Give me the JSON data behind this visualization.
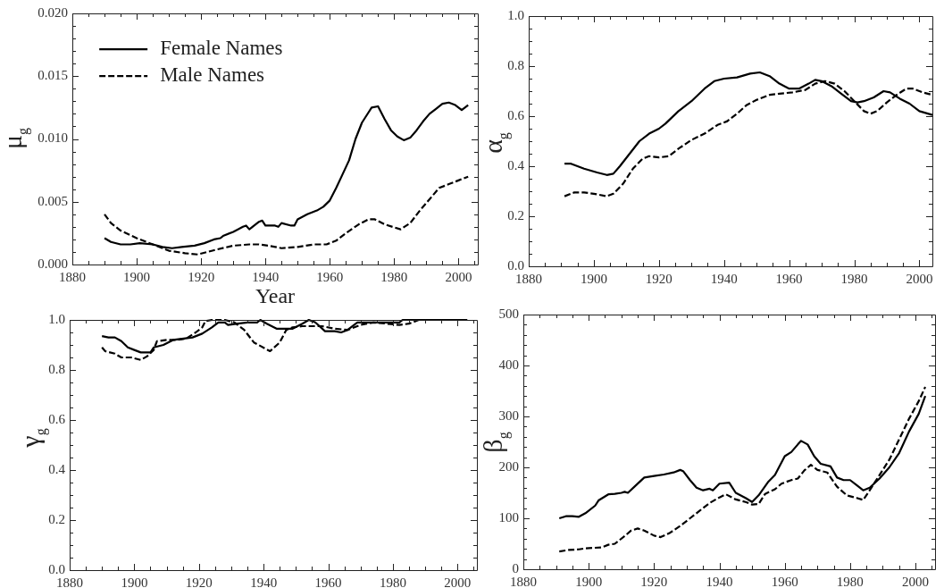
{
  "chart_data": [
    {
      "type": "line",
      "xlabel": "Year",
      "ylabel": "μ$_{g}$",
      "legend": "top left",
      "xlim": [
        1880,
        2006
      ],
      "ylim": [
        0,
        0.02
      ],
      "xticks": [
        1880,
        {
          "value": 1885,
          "label": null
        },
        {
          "value": 1890,
          "label": null
        },
        {
          "value": 1895,
          "label": null
        },
        1900,
        {
          "value": 1905,
          "label": null
        },
        {
          "value": 1910,
          "label": null
        },
        {
          "value": 1915,
          "label": null
        },
        1920,
        {
          "value": 1925,
          "label": null
        },
        {
          "value": 1930,
          "label": null
        },
        {
          "value": 1935,
          "label": null
        },
        1940,
        {
          "value": 1945,
          "label": null
        },
        {
          "value": 1950,
          "label": null
        },
        {
          "value": 1955,
          "label": null
        },
        1960,
        {
          "value": 1965,
          "label": null
        },
        {
          "value": 1970,
          "label": null
        },
        {
          "value": 1975,
          "label": null
        },
        1980,
        {
          "value": 1985,
          "label": null
        },
        {
          "value": 1990,
          "label": null
        },
        {
          "value": 1995,
          "label": null
        },
        2000,
        {
          "value": 2005,
          "label": null
        }
      ],
      "yticks": [
        {
          "value": 0,
          "label": "0.000"
        },
        {
          "value": 0.001,
          "label": null
        },
        {
          "value": 0.002,
          "label": null
        },
        {
          "value": 0.003,
          "label": null
        },
        {
          "value": 0.004,
          "label": null
        },
        {
          "value": 0.005,
          "label": "0.005"
        },
        {
          "value": 0.006,
          "label": null
        },
        {
          "value": 0.007,
          "label": null
        },
        {
          "value": 0.008,
          "label": null
        },
        {
          "value": 0.009,
          "label": null
        },
        {
          "value": 0.01,
          "label": "0.010"
        },
        {
          "value": 0.011,
          "label": null
        },
        {
          "value": 0.012,
          "label": null
        },
        {
          "value": 0.013,
          "label": null
        },
        {
          "value": 0.014,
          "label": null
        },
        {
          "value": 0.015,
          "label": "0.015"
        },
        {
          "value": 0.016,
          "label": null
        },
        {
          "value": 0.017,
          "label": null
        },
        {
          "value": 0.018,
          "label": null
        },
        {
          "value": 0.019,
          "label": null
        },
        {
          "value": 0.02,
          "label": "0.020"
        }
      ],
      "series": [
        {
          "name": "Female Names",
          "color": "#000000",
          "line_style": "solid",
          "x": [
            1890,
            1892,
            1895,
            1898,
            1901,
            1905,
            1908,
            1911,
            1914,
            1918,
            1921,
            1924,
            1926,
            1927,
            1930,
            1933,
            1934,
            1935,
            1938,
            1939,
            1940,
            1943,
            1944,
            1945,
            1948,
            1949,
            1950,
            1953,
            1956,
            1958,
            1960,
            1962,
            1964,
            1966,
            1968,
            1970,
            1972,
            1973,
            1975,
            1977,
            1979,
            1981,
            1983,
            1985,
            1987,
            1989,
            1991,
            1993,
            1995,
            1997,
            1999,
            2001,
            2003
          ],
          "values": [
            0.0021,
            0.0018,
            0.0016,
            0.0016,
            0.0017,
            0.0016,
            0.0014,
            0.0013,
            0.0014,
            0.0015,
            0.0017,
            0.002,
            0.0021,
            0.0023,
            0.0026,
            0.003,
            0.0031,
            0.0028,
            0.0034,
            0.0035,
            0.0031,
            0.0031,
            0.003,
            0.0033,
            0.0031,
            0.0031,
            0.0036,
            0.004,
            0.0043,
            0.0046,
            0.0051,
            0.0061,
            0.0072,
            0.0083,
            0.01,
            0.0113,
            0.0121,
            0.0125,
            0.0126,
            0.0116,
            0.0107,
            0.0102,
            0.0099,
            0.0101,
            0.0107,
            0.0114,
            0.012,
            0.0124,
            0.0128,
            0.0129,
            0.0127,
            0.0123,
            0.0127
          ]
        },
        {
          "name": "Male Names",
          "color": "#000000",
          "line_style": "dashed",
          "x": [
            1890,
            1892,
            1895,
            1900,
            1905,
            1910,
            1915,
            1919,
            1922,
            1925,
            1930,
            1935,
            1938,
            1941,
            1945,
            1950,
            1955,
            1959,
            1962,
            1965,
            1969,
            1972,
            1974,
            1977,
            1982,
            1985,
            1988,
            1991,
            1994,
            1997,
            2000,
            2003
          ],
          "values": [
            0.004,
            0.0033,
            0.0027,
            0.0021,
            0.0016,
            0.0011,
            0.0009,
            0.0008,
            0.001,
            0.0012,
            0.0015,
            0.0016,
            0.0016,
            0.0015,
            0.0013,
            0.0014,
            0.0016,
            0.0016,
            0.0019,
            0.0025,
            0.0032,
            0.0036,
            0.0036,
            0.0032,
            0.0028,
            0.0033,
            0.0043,
            0.0052,
            0.0061,
            0.0064,
            0.0067,
            0.007
          ]
        }
      ]
    },
    {
      "type": "line",
      "ylabel": "α$_{g}$",
      "xlim": [
        1880,
        2004
      ],
      "ylim": [
        0,
        1
      ],
      "xticks": [
        1880,
        {
          "value": 1885,
          "label": null
        },
        {
          "value": 1890,
          "label": null
        },
        {
          "value": 1895,
          "label": null
        },
        1900,
        {
          "value": 1905,
          "label": null
        },
        {
          "value": 1910,
          "label": null
        },
        {
          "value": 1915,
          "label": null
        },
        1920,
        {
          "value": 1925,
          "label": null
        },
        {
          "value": 1930,
          "label": null
        },
        {
          "value": 1935,
          "label": null
        },
        1940,
        {
          "value": 1945,
          "label": null
        },
        {
          "value": 1950,
          "label": null
        },
        {
          "value": 1955,
          "label": null
        },
        1960,
        {
          "value": 1965,
          "label": null
        },
        {
          "value": 1970,
          "label": null
        },
        {
          "value": 1975,
          "label": null
        },
        1980,
        {
          "value": 1985,
          "label": null
        },
        {
          "value": 1990,
          "label": null
        },
        {
          "value": 1995,
          "label": null
        },
        2000
      ],
      "yticks": [
        {
          "value": 0,
          "label": "0.0"
        },
        {
          "value": 0.05,
          "label": null
        },
        {
          "value": 0.1,
          "label": null
        },
        {
          "value": 0.15,
          "label": null
        },
        0.2,
        {
          "value": 0.25,
          "label": null
        },
        {
          "value": 0.3,
          "label": null
        },
        {
          "value": 0.35,
          "label": null
        },
        0.4,
        {
          "value": 0.45,
          "label": null
        },
        {
          "value": 0.5,
          "label": null
        },
        {
          "value": 0.55,
          "label": null
        },
        0.6,
        {
          "value": 0.65,
          "label": null
        },
        {
          "value": 0.7,
          "label": null
        },
        {
          "value": 0.75,
          "label": null
        },
        0.8,
        {
          "value": 0.85,
          "label": null
        },
        {
          "value": 0.9,
          "label": null
        },
        {
          "value": 0.95,
          "label": null
        },
        {
          "value": 1,
          "label": "1.0"
        }
      ],
      "series": [
        {
          "color": "#000000",
          "line_style": "solid",
          "x": [
            1891,
            1893,
            1897,
            1901,
            1904,
            1906,
            1908,
            1911,
            1914,
            1917,
            1920,
            1922,
            1926,
            1930,
            1934,
            1937,
            1940,
            1944,
            1948,
            1951,
            1954,
            1957,
            1960,
            1963,
            1966,
            1968,
            1970,
            1973,
            1976,
            1979,
            1981,
            1983,
            1986,
            1989,
            1991,
            1994,
            1997,
            2000,
            2004
          ],
          "values": [
            0.41,
            0.41,
            0.39,
            0.375,
            0.365,
            0.37,
            0.4,
            0.45,
            0.5,
            0.53,
            0.55,
            0.57,
            0.62,
            0.66,
            0.71,
            0.74,
            0.75,
            0.755,
            0.77,
            0.775,
            0.76,
            0.73,
            0.71,
            0.71,
            0.73,
            0.745,
            0.74,
            0.72,
            0.69,
            0.66,
            0.655,
            0.66,
            0.675,
            0.7,
            0.695,
            0.67,
            0.65,
            0.62,
            0.605
          ]
        },
        {
          "color": "#000000",
          "line_style": "dashed",
          "x": [
            1891,
            1894,
            1897,
            1900,
            1904,
            1906,
            1909,
            1912,
            1915,
            1917,
            1920,
            1923,
            1926,
            1930,
            1934,
            1938,
            1941,
            1944,
            1947,
            1950,
            1954,
            1957,
            1961,
            1965,
            1968,
            1971,
            1974,
            1977,
            1980,
            1983,
            1985,
            1987,
            1990,
            1993,
            1996,
            1998,
            2001,
            2004
          ],
          "values": [
            0.28,
            0.295,
            0.295,
            0.29,
            0.28,
            0.29,
            0.33,
            0.39,
            0.43,
            0.44,
            0.435,
            0.44,
            0.47,
            0.505,
            0.53,
            0.565,
            0.58,
            0.61,
            0.645,
            0.665,
            0.685,
            0.69,
            0.695,
            0.705,
            0.73,
            0.74,
            0.73,
            0.7,
            0.66,
            0.62,
            0.61,
            0.62,
            0.655,
            0.685,
            0.71,
            0.71,
            0.695,
            0.685
          ]
        }
      ]
    },
    {
      "type": "line",
      "ylabel": "γ$_{g}$",
      "xlim": [
        1880,
        2006
      ],
      "ylim": [
        0,
        1
      ],
      "xticks": [
        1880,
        {
          "value": 1885,
          "label": null
        },
        {
          "value": 1890,
          "label": null
        },
        {
          "value": 1895,
          "label": null
        },
        1900,
        {
          "value": 1905,
          "label": null
        },
        {
          "value": 1910,
          "label": null
        },
        {
          "value": 1915,
          "label": null
        },
        1920,
        {
          "value": 1925,
          "label": null
        },
        {
          "value": 1930,
          "label": null
        },
        {
          "value": 1935,
          "label": null
        },
        1940,
        {
          "value": 1945,
          "label": null
        },
        {
          "value": 1950,
          "label": null
        },
        {
          "value": 1955,
          "label": null
        },
        1960,
        {
          "value": 1965,
          "label": null
        },
        {
          "value": 1970,
          "label": null
        },
        {
          "value": 1975,
          "label": null
        },
        1980,
        {
          "value": 1985,
          "label": null
        },
        {
          "value": 1990,
          "label": null
        },
        {
          "value": 1995,
          "label": null
        },
        2000,
        {
          "value": 2005,
          "label": null
        }
      ],
      "yticks": [
        {
          "value": 0,
          "label": "0.0"
        },
        {
          "value": 0.05,
          "label": null
        },
        {
          "value": 0.1,
          "label": null
        },
        {
          "value": 0.15,
          "label": null
        },
        0.2,
        {
          "value": 0.25,
          "label": null
        },
        {
          "value": 0.3,
          "label": null
        },
        {
          "value": 0.35,
          "label": null
        },
        0.4,
        {
          "value": 0.45,
          "label": null
        },
        {
          "value": 0.5,
          "label": null
        },
        {
          "value": 0.55,
          "label": null
        },
        0.6,
        {
          "value": 0.65,
          "label": null
        },
        {
          "value": 0.7,
          "label": null
        },
        {
          "value": 0.75,
          "label": null
        },
        0.8,
        {
          "value": 0.85,
          "label": null
        },
        {
          "value": 0.9,
          "label": null
        },
        {
          "value": 0.95,
          "label": null
        },
        {
          "value": 1,
          "label": "1.0"
        }
      ],
      "series": [
        {
          "color": "#000000",
          "line_style": "solid",
          "x": [
            1890,
            1892,
            1894,
            1896,
            1898,
            1900,
            1902,
            1905,
            1906,
            1909,
            1912,
            1918,
            1921,
            1924,
            1926,
            1928,
            1929,
            1932,
            1935,
            1938,
            1939,
            1941,
            1944,
            1949,
            1952,
            1954,
            1956,
            1959,
            1962,
            1964,
            1966,
            1969,
            1971,
            1975,
            1982,
            1983,
            2003
          ],
          "values": [
            0.935,
            0.93,
            0.93,
            0.915,
            0.89,
            0.88,
            0.87,
            0.87,
            0.89,
            0.9,
            0.92,
            0.93,
            0.945,
            0.97,
            0.99,
            0.99,
            0.98,
            0.985,
            0.99,
            0.99,
            1,
            0.985,
            0.965,
            0.965,
            0.985,
            1,
            0.99,
            0.955,
            0.955,
            0.95,
            0.96,
            0.99,
            0.99,
            0.99,
            0.99,
            1,
            1
          ]
        },
        {
          "color": "#000000",
          "line_style": "dashed",
          "x": [
            1890,
            1891,
            1894,
            1896,
            1899,
            1902,
            1904,
            1906,
            1907,
            1910,
            1913,
            1916,
            1919,
            1921,
            1922,
            1924,
            1928,
            1931,
            1934,
            1937,
            1942,
            1945,
            1947,
            1949,
            1952,
            1958,
            1962,
            1966,
            1970,
            1974,
            1978,
            1982,
            1985,
            1988,
            2003
          ],
          "values": [
            0.89,
            0.875,
            0.865,
            0.85,
            0.85,
            0.84,
            0.855,
            0.88,
            0.915,
            0.92,
            0.92,
            0.925,
            0.95,
            0.97,
            0.995,
            1,
            1,
            0.99,
            0.96,
            0.91,
            0.875,
            0.91,
            0.96,
            0.97,
            0.975,
            0.975,
            0.965,
            0.96,
            0.98,
            0.99,
            0.985,
            0.98,
            0.985,
            1,
            1
          ]
        }
      ]
    },
    {
      "type": "line",
      "ylabel": "β$_{g}$",
      "xlim": [
        1880,
        2006
      ],
      "ylim": [
        0,
        500
      ],
      "xticks": [
        1880,
        {
          "value": 1885,
          "label": null
        },
        {
          "value": 1890,
          "label": null
        },
        {
          "value": 1895,
          "label": null
        },
        1900,
        {
          "value": 1905,
          "label": null
        },
        {
          "value": 1910,
          "label": null
        },
        {
          "value": 1915,
          "label": null
        },
        1920,
        {
          "value": 1925,
          "label": null
        },
        {
          "value": 1930,
          "label": null
        },
        {
          "value": 1935,
          "label": null
        },
        1940,
        {
          "value": 1945,
          "label": null
        },
        {
          "value": 1950,
          "label": null
        },
        {
          "value": 1955,
          "label": null
        },
        1960,
        {
          "value": 1965,
          "label": null
        },
        {
          "value": 1970,
          "label": null
        },
        {
          "value": 1975,
          "label": null
        },
        1980,
        {
          "value": 1985,
          "label": null
        },
        {
          "value": 1990,
          "label": null
        },
        {
          "value": 1995,
          "label": null
        },
        2000,
        {
          "value": 2005,
          "label": null
        }
      ],
      "yticks": [
        0,
        {
          "value": 20,
          "label": null
        },
        {
          "value": 40,
          "label": null
        },
        {
          "value": 60,
          "label": null
        },
        {
          "value": 80,
          "label": null
        },
        100,
        {
          "value": 120,
          "label": null
        },
        {
          "value": 140,
          "label": null
        },
        {
          "value": 160,
          "label": null
        },
        {
          "value": 180,
          "label": null
        },
        200,
        {
          "value": 220,
          "label": null
        },
        {
          "value": 240,
          "label": null
        },
        {
          "value": 260,
          "label": null
        },
        {
          "value": 280,
          "label": null
        },
        300,
        {
          "value": 320,
          "label": null
        },
        {
          "value": 340,
          "label": null
        },
        {
          "value": 360,
          "label": null
        },
        {
          "value": 380,
          "label": null
        },
        400,
        {
          "value": 420,
          "label": null
        },
        {
          "value": 440,
          "label": null
        },
        {
          "value": 460,
          "label": null
        },
        {
          "value": 480,
          "label": null
        },
        500
      ],
      "series": [
        {
          "color": "#000000",
          "line_style": "solid",
          "x": [
            1891,
            1893,
            1895,
            1897,
            1899,
            1902,
            1903,
            1906,
            1908,
            1910,
            1911,
            1912,
            1914,
            1917,
            1920,
            1923,
            1926,
            1928,
            1929,
            1931,
            1933,
            1935,
            1937,
            1938,
            1940,
            1943,
            1945,
            1948,
            1950,
            1952,
            1955,
            1957,
            1960,
            1962,
            1964,
            1965,
            1967,
            1969,
            1971,
            1974,
            1976,
            1978,
            1980,
            1982,
            1984,
            1986,
            1989,
            1992,
            1995,
            1998,
            2001,
            2003
          ],
          "values": [
            100,
            104,
            104,
            103,
            110,
            125,
            135,
            147,
            148,
            150,
            152,
            150,
            162,
            180,
            183,
            186,
            190,
            195,
            192,
            175,
            160,
            155,
            158,
            155,
            168,
            170,
            150,
            140,
            132,
            145,
            172,
            185,
            222,
            230,
            245,
            252,
            245,
            222,
            207,
            202,
            180,
            175,
            175,
            165,
            155,
            160,
            178,
            200,
            228,
            270,
            305,
            340
          ]
        },
        {
          "color": "#000000",
          "line_style": "dashed",
          "x": [
            1891,
            1894,
            1897,
            1899,
            1904,
            1906,
            1908,
            1911,
            1913,
            1915,
            1917,
            1920,
            1922,
            1925,
            1928,
            1931,
            1934,
            1937,
            1940,
            1942,
            1945,
            1948,
            1950,
            1952,
            1954,
            1957,
            1959,
            1962,
            1964,
            1966,
            1968,
            1970,
            1973,
            1976,
            1979,
            1982,
            1984,
            1986,
            1989,
            1992,
            1995,
            1998,
            2001,
            2003
          ],
          "values": [
            35,
            38,
            39,
            41,
            43,
            48,
            50,
            65,
            76,
            80,
            76,
            66,
            63,
            72,
            85,
            100,
            115,
            130,
            141,
            147,
            137,
            132,
            127,
            128,
            148,
            157,
            168,
            175,
            178,
            194,
            205,
            195,
            190,
            162,
            145,
            140,
            136,
            155,
            185,
            215,
            255,
            295,
            330,
            358
          ]
        }
      ]
    }
  ]
}
